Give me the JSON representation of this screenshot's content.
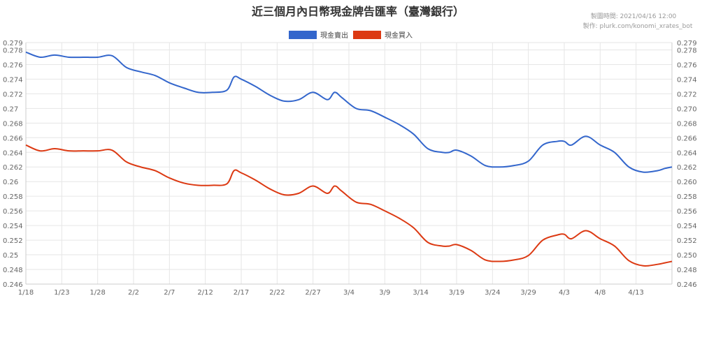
{
  "chart_data": {
    "type": "line",
    "title": "近三個月內日幣現金牌告匯率（臺灣銀行）",
    "created_at": "製圖時間: 2021/04/16 12:00",
    "author": "製作: plurk.com/konomi_xrates_bot",
    "xlabel": "",
    "ylabel": "",
    "ylim": [
      0.246,
      0.279
    ],
    "y_ticks": [
      "0.246",
      "0.248",
      "0.25",
      "0.252",
      "0.254",
      "0.256",
      "0.258",
      "0.26",
      "0.262",
      "0.264",
      "0.266",
      "0.268",
      "0.27",
      "0.272",
      "0.274",
      "0.276",
      "0.278",
      "0.279"
    ],
    "y_ticks_right": [
      "0.246",
      "0.248",
      "0.250",
      "0.252",
      "0.254",
      "0.256",
      "0.258",
      "0.260",
      "0.262",
      "0.264",
      "0.266",
      "0.268",
      "0.270",
      "0.272",
      "0.274",
      "0.276",
      "0.278",
      "0.279"
    ],
    "x_ticks": [
      "1/18",
      "1/23",
      "1/28",
      "2/2",
      "2/7",
      "2/12",
      "2/17",
      "2/22",
      "2/27",
      "3/4",
      "3/9",
      "3/14",
      "3/19",
      "3/24",
      "3/29",
      "4/3",
      "4/8",
      "4/13"
    ],
    "grid": true,
    "legend_position": "top",
    "x": [
      0,
      2,
      4,
      6,
      8,
      10,
      12,
      14,
      16,
      18,
      20,
      22,
      24,
      26,
      28,
      29,
      30,
      32,
      34,
      36,
      38,
      40,
      42,
      43,
      44,
      46,
      48,
      50,
      52,
      54,
      56,
      58,
      59,
      60,
      62,
      64,
      66,
      68,
      70,
      72,
      74,
      75,
      76,
      78,
      80,
      82,
      84,
      86,
      88,
      89,
      90
    ],
    "series": [
      {
        "name": "現金賣出",
        "color": "#3366cc",
        "values": [
          0.2777,
          0.277,
          0.2773,
          0.277,
          0.277,
          0.277,
          0.2772,
          0.2756,
          0.275,
          0.2745,
          0.2735,
          0.2728,
          0.2722,
          0.2722,
          0.2725,
          0.2743,
          0.274,
          0.273,
          0.2718,
          0.271,
          0.2712,
          0.2722,
          0.2712,
          0.2722,
          0.2715,
          0.27,
          0.2697,
          0.2688,
          0.2678,
          0.2665,
          0.2645,
          0.264,
          0.264,
          0.2643,
          0.2635,
          0.2622,
          0.262,
          0.2622,
          0.2628,
          0.265,
          0.2655,
          0.2655,
          0.265,
          0.2662,
          0.265,
          0.264,
          0.262,
          0.2613,
          0.2615,
          0.2618,
          0.262
        ]
      },
      {
        "name": "現金買入",
        "color": "#dc3912",
        "values": [
          0.265,
          0.2642,
          0.2645,
          0.2642,
          0.2642,
          0.2642,
          0.2643,
          0.2627,
          0.262,
          0.2615,
          0.2605,
          0.2598,
          0.2595,
          0.2595,
          0.2597,
          0.2615,
          0.2612,
          0.2602,
          0.259,
          0.2582,
          0.2584,
          0.2594,
          0.2584,
          0.2594,
          0.2587,
          0.2572,
          0.2569,
          0.256,
          0.255,
          0.2537,
          0.2517,
          0.2512,
          0.2512,
          0.2514,
          0.2506,
          0.2493,
          0.2491,
          0.2493,
          0.2499,
          0.252,
          0.2527,
          0.2528,
          0.2522,
          0.2533,
          0.2522,
          0.2512,
          0.2492,
          0.2485,
          0.2487,
          0.2489,
          0.2491
        ]
      }
    ]
  }
}
